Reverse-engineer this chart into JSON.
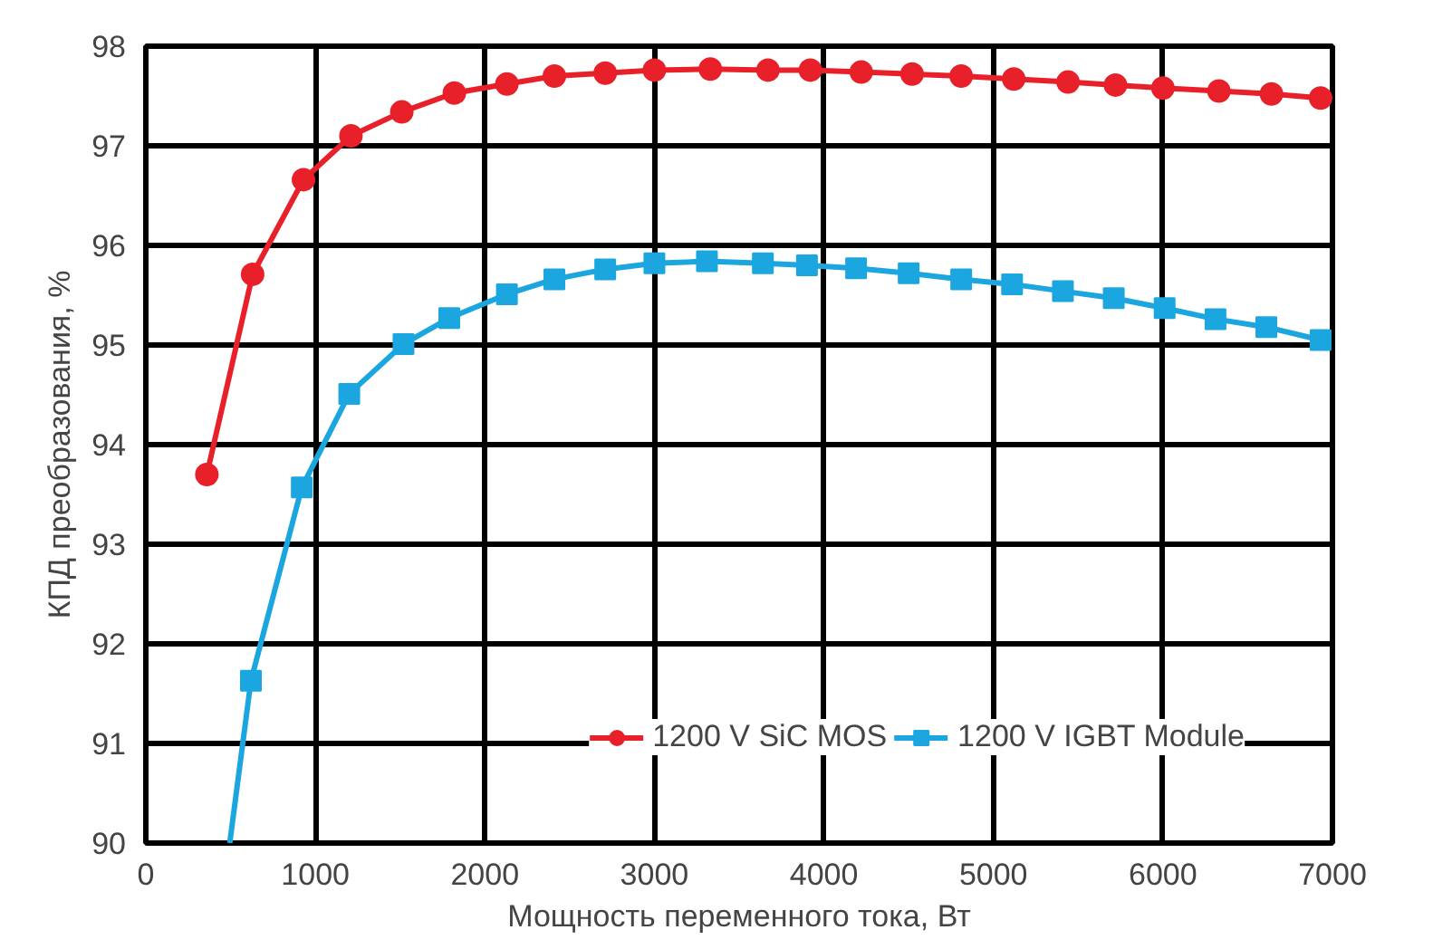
{
  "chart_data": {
    "type": "line",
    "xlabel": "Мощность переменного тока, Вт",
    "ylabel": "КПД преобразования, %",
    "xlim": [
      0,
      7000
    ],
    "ylim": [
      90,
      98
    ],
    "xticks": [
      0,
      1000,
      2000,
      3000,
      4000,
      5000,
      6000,
      7000
    ],
    "yticks": [
      90,
      91,
      92,
      93,
      94,
      95,
      96,
      97,
      98
    ],
    "grid": true,
    "legend": "bottom right",
    "series": [
      {
        "name": "1200 V SiC MOS",
        "color": "#e8202a",
        "marker": "circle",
        "x": [
          360,
          630,
          930,
          1210,
          1510,
          1820,
          2130,
          2410,
          2710,
          3000,
          3330,
          3670,
          3920,
          4220,
          4520,
          4810,
          5120,
          5440,
          5720,
          6000,
          6330,
          6640,
          6930
        ],
        "values": [
          93.7,
          95.71,
          96.66,
          97.1,
          97.34,
          97.53,
          97.62,
          97.7,
          97.73,
          97.76,
          97.77,
          97.76,
          97.76,
          97.74,
          97.72,
          97.7,
          97.67,
          97.64,
          97.61,
          97.58,
          97.55,
          97.52,
          97.48
        ]
      },
      {
        "name": "1200 V IGBT Module",
        "color": "#1ba6e0",
        "marker": "square",
        "x": [
          620,
          920,
          1200,
          1520,
          1790,
          2130,
          2410,
          2710,
          3000,
          3310,
          3640,
          3900,
          4190,
          4500,
          4810,
          5110,
          5410,
          5710,
          6010,
          6310,
          6610,
          6930
        ],
        "values": [
          91.63,
          93.57,
          94.51,
          95.01,
          95.27,
          95.51,
          95.66,
          95.76,
          95.82,
          95.84,
          95.82,
          95.8,
          95.77,
          95.72,
          95.66,
          95.61,
          95.54,
          95.47,
          95.37,
          95.26,
          95.18,
          95.05
        ]
      },
      {
        "color": "#1ba6e0",
        "marker": "none",
        "x": [
          495,
          620
        ],
        "values": [
          90,
          91.63
        ]
      }
    ]
  }
}
